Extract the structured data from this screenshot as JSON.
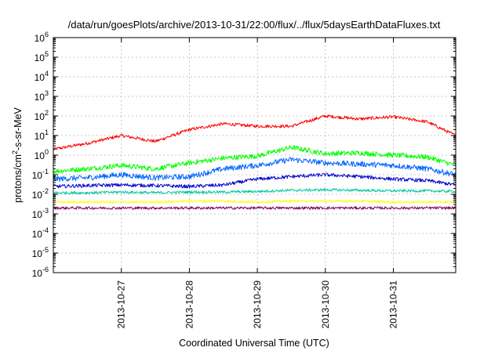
{
  "chart_data": {
    "type": "line",
    "title": "/data/run/goesPlots/archive/2013-10-31/22:00/flux/../flux/5daysEarthDataFluxes.txt",
    "xlabel": "Coordinated Universal Time (UTC)",
    "ylabel_parts": [
      "protons/cm",
      "2",
      "-s-sr-MeV"
    ],
    "yscale": "log",
    "ylim": [
      1e-06,
      1000000.0
    ],
    "xlim": [
      "2013-10-26 00:00",
      "2013-10-31 22:00"
    ],
    "x_ticks": [
      "2013-10-27",
      "2013-10-28",
      "2013-10-29",
      "2013-10-30",
      "2013-10-31"
    ],
    "y_ticks": [
      {
        "base": "10",
        "exp": "-6"
      },
      {
        "base": "10",
        "exp": "-5"
      },
      {
        "base": "10",
        "exp": "-4"
      },
      {
        "base": "10",
        "exp": "-3"
      },
      {
        "base": "10",
        "exp": "-2"
      },
      {
        "base": "10",
        "exp": "-1"
      },
      {
        "base": "10",
        "exp": "0"
      },
      {
        "base": "10",
        "exp": "1"
      },
      {
        "base": "10",
        "exp": "2"
      },
      {
        "base": "10",
        "exp": "3"
      },
      {
        "base": "10",
        "exp": "4"
      },
      {
        "base": "10",
        "exp": "5"
      },
      {
        "base": "10",
        "exp": "6"
      }
    ],
    "grid": true,
    "legend": "none",
    "x": [
      "2013-10-26 00:00",
      "2013-10-26 12:00",
      "2013-10-27 00:00",
      "2013-10-27 12:00",
      "2013-10-28 00:00",
      "2013-10-28 12:00",
      "2013-10-29 00:00",
      "2013-10-29 12:00",
      "2013-10-30 00:00",
      "2013-10-30 12:00",
      "2013-10-31 00:00",
      "2013-10-31 12:00",
      "2013-10-31 22:00"
    ],
    "series": [
      {
        "color": "#ff0000",
        "values": [
          2,
          4,
          10,
          5,
          20,
          40,
          30,
          30,
          100,
          70,
          90,
          50,
          10
        ]
      },
      {
        "color": "#00ff00",
        "values": [
          0.15,
          0.2,
          0.3,
          0.2,
          0.4,
          0.7,
          0.9,
          2.5,
          1.2,
          1.3,
          1.0,
          0.8,
          0.3
        ]
      },
      {
        "color": "#0066ff",
        "values": [
          0.06,
          0.07,
          0.1,
          0.07,
          0.08,
          0.2,
          0.3,
          0.6,
          0.4,
          0.35,
          0.3,
          0.2,
          0.1
        ]
      },
      {
        "color": "#0000cc",
        "values": [
          0.025,
          0.028,
          0.03,
          0.028,
          0.025,
          0.03,
          0.06,
          0.08,
          0.1,
          0.08,
          0.06,
          0.05,
          0.03
        ]
      },
      {
        "color": "#00c8a0",
        "values": [
          0.012,
          0.012,
          0.013,
          0.012,
          0.013,
          0.013,
          0.014,
          0.016,
          0.017,
          0.016,
          0.015,
          0.015,
          0.014
        ]
      },
      {
        "color": "#ffff00",
        "values": [
          0.004,
          0.004,
          0.004,
          0.004,
          0.0045,
          0.0045,
          0.004,
          0.0045,
          0.0045,
          0.0045,
          0.004,
          0.004,
          0.004
        ]
      },
      {
        "color": "#800060",
        "values": [
          0.002,
          0.002,
          0.002,
          0.002,
          0.002,
          0.002,
          0.002,
          0.002,
          0.002,
          0.002,
          0.002,
          0.002,
          0.002
        ]
      }
    ]
  }
}
